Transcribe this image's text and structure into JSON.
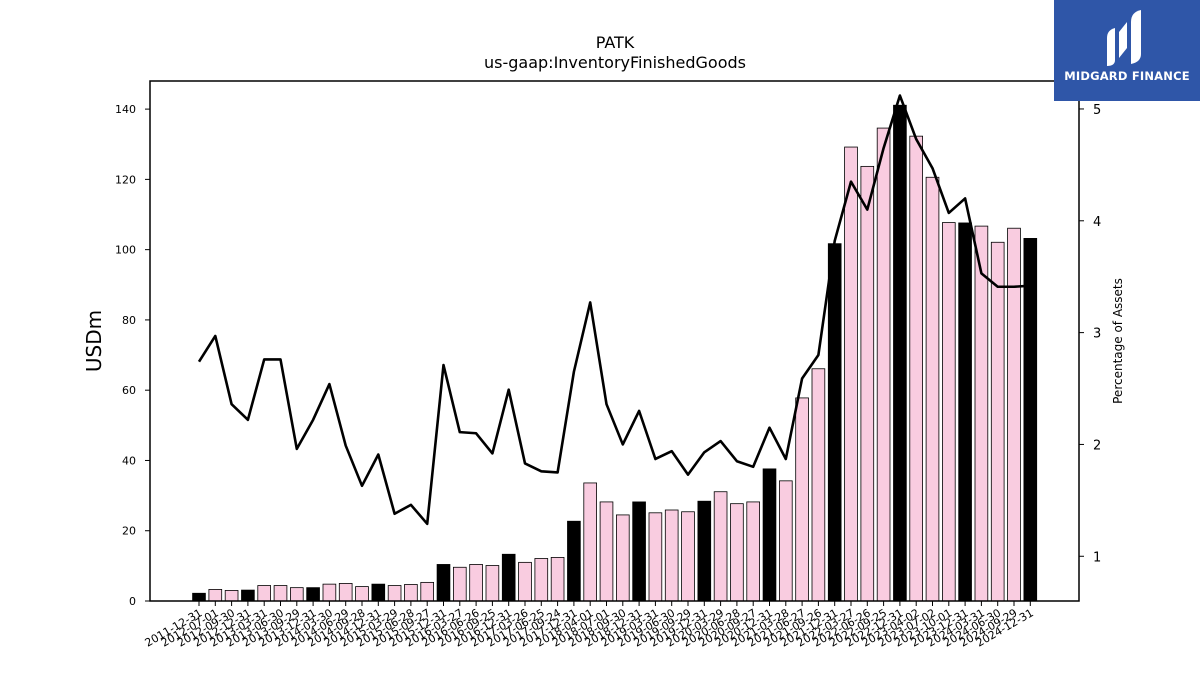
{
  "chart_data": {
    "type": "bar+line",
    "title": "PATK",
    "subtitle": "us-gaap:InventoryFinishedGoods",
    "ylabel_left": "USDm",
    "ylabel_right": "Percentage of Assets",
    "ylim_left": [
      0,
      148
    ],
    "ylim_right": [
      0.6,
      5.25
    ],
    "yticks_left": [
      0,
      20,
      40,
      60,
      80,
      100,
      120,
      140
    ],
    "yticks_right": [
      1,
      2,
      3,
      4,
      5
    ],
    "categories": [
      "2011-12-31",
      "2012-07-01",
      "2012-09-30",
      "2012-12-31",
      "2013-03-31",
      "2013-06-30",
      "2013-09-29",
      "2013-12-31",
      "2014-03-30",
      "2014-06-29",
      "2014-09-28",
      "2014-12-31",
      "2015-03-29",
      "2015-06-28",
      "2015-09-27",
      "2015-12-31",
      "2016-03-27",
      "2016-06-26",
      "2016-09-25",
      "2016-12-31",
      "2017-03-26",
      "2017-06-25",
      "2017-09-24",
      "2017-12-31",
      "2018-04-01",
      "2018-07-01",
      "2018-09-30",
      "2018-12-31",
      "2019-03-31",
      "2019-06-30",
      "2019-09-29",
      "2019-12-31",
      "2020-03-29",
      "2020-06-28",
      "2020-09-27",
      "2020-12-31",
      "2021-03-28",
      "2021-06-27",
      "2021-09-26",
      "2021-12-31",
      "2022-03-27",
      "2022-06-26",
      "2022-09-25",
      "2022-12-31",
      "2023-04-02",
      "2023-07-02",
      "2023-10-01",
      "2023-12-31",
      "2024-03-31",
      "2024-06-30",
      "2024-09-29",
      "2024-12-31"
    ],
    "visible_tick_labels": [
      "2011-12-31",
      "2012-07-01",
      "2012-09-30",
      "2012-12-31",
      "2013-03-31",
      "2013-06-30",
      "2013-09-29",
      "2013-12-31",
      "2014-03-30",
      "2014-06-29",
      "2014-09-28",
      "2014-12-31",
      "2015-03-29",
      "2015-06-28",
      "2015-09-27",
      "2015-12-31",
      "2016-03-27",
      "2016-06-26",
      "2016-09-25",
      "2016-12-31",
      "2017-03-26",
      "2017-06-25",
      "2017-09-24",
      "2017-12-31",
      "2018-04-01",
      "2018-07-01",
      "2018-09-30",
      "2018-12-31",
      "2019-03-31",
      "2019-06-30",
      "2019-09-29",
      "2019-12-31",
      "2020-03-29",
      "2020-06-28",
      "2020-09-27",
      "2020-12-31",
      "2021-03-28",
      "2021-06-27",
      "2021-09-26",
      "2021-12-31",
      "2022-03-27",
      "2022-06-26",
      "2022-09-25",
      "2022-12-31",
      "2023-04-02",
      "2023-07-02",
      "2023-10-01",
      "2023-12-31",
      "2024-03-31",
      "2024-06-30",
      "2024-09-29",
      "2024-12-31"
    ],
    "bar_series": {
      "values": [
        2.2,
        3.3,
        3.0,
        3.1,
        4.4,
        4.4,
        3.8,
        3.8,
        4.8,
        5.0,
        4.1,
        4.8,
        4.4,
        4.7,
        5.3,
        10.4,
        9.6,
        10.4,
        10.1,
        13.3,
        11.0,
        12.1,
        12.4,
        22.7,
        33.6,
        28.2,
        24.5,
        28.2,
        25.1,
        25.9,
        25.4,
        28.4,
        31.1,
        27.7,
        28.2,
        37.6,
        34.2,
        57.8,
        66.1,
        101.7,
        129.2,
        123.7,
        134.6,
        141.1,
        132.3,
        120.6,
        107.7,
        107.6,
        106.7,
        102.1,
        106.1,
        103.2
      ],
      "annual": [
        true,
        false,
        false,
        true,
        false,
        false,
        false,
        true,
        false,
        false,
        false,
        true,
        false,
        false,
        false,
        true,
        false,
        false,
        false,
        true,
        false,
        false,
        false,
        true,
        false,
        false,
        false,
        true,
        false,
        false,
        false,
        true,
        false,
        false,
        false,
        true,
        false,
        false,
        false,
        true,
        false,
        false,
        false,
        true,
        false,
        false,
        false,
        true,
        false,
        false,
        false,
        true
      ]
    },
    "line_series": {
      "values": [
        2.74,
        2.97,
        2.36,
        2.22,
        2.76,
        2.76,
        1.96,
        2.22,
        2.54,
        1.99,
        1.63,
        1.91,
        1.38,
        1.46,
        1.29,
        2.71,
        2.11,
        2.1,
        1.92,
        2.49,
        1.83,
        1.76,
        1.75,
        2.65,
        3.27,
        2.36,
        2.0,
        2.3,
        1.87,
        1.94,
        1.73,
        1.93,
        2.03,
        1.85,
        1.8,
        2.15,
        1.87,
        2.59,
        2.8,
        3.82,
        4.35,
        4.1,
        4.65,
        5.12,
        4.73,
        4.47,
        4.07,
        4.2,
        3.53,
        3.41,
        3.41,
        3.42
      ]
    },
    "colors": {
      "annual_bar": "#000000",
      "quarter_bar": "#f9cce0",
      "bar_edge": "#000000",
      "line": "#000000"
    },
    "grid": false
  },
  "logo": {
    "text": "MIDGARD FINANCE",
    "bg": "#2f56a8"
  }
}
